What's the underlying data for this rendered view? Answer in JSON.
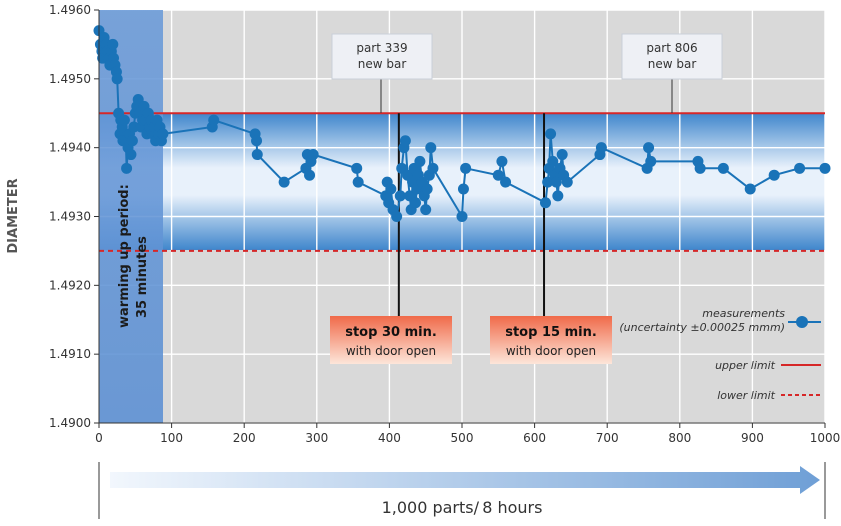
{
  "chart_data": {
    "type": "line",
    "ylabel": "DIAMETER",
    "xlabel": "1,000 parts/ 8 hours",
    "xlim": [
      0,
      1000
    ],
    "ylim": [
      1.49,
      1.496
    ],
    "x_ticks": [
      "0",
      "100",
      "200",
      "300",
      "400",
      "500",
      "600",
      "700",
      "800",
      "900",
      "1000"
    ],
    "y_ticks": [
      "1.4900",
      "1.4910",
      "1.4920",
      "1.4930",
      "1.4940",
      "1.4950",
      "1.4960"
    ],
    "grid": true,
    "upper_limit": 1.4945,
    "lower_limit": 1.4925,
    "warmup": {
      "x_end": 88,
      "label_line1": "warming up period:",
      "label_line2": "35 minutes"
    },
    "annotations": {
      "bar1": {
        "x": 390,
        "line1": "part 339",
        "line2": "new bar"
      },
      "bar2": {
        "x": 790,
        "line1": "part 806",
        "line2": "new bar"
      },
      "stop1": {
        "x": 413,
        "line1": "stop 30 min.",
        "line2": "with door open"
      },
      "stop2": {
        "x": 613,
        "line1": "stop 15 min.",
        "line2": "with door open"
      }
    },
    "legend": {
      "placement": "bottom-right",
      "measurements_line1": "measurements",
      "measurements_line2": "(uncertainty ±0.00025 mmm)",
      "upper": "upper limit",
      "lower": "lower limit"
    },
    "colors": {
      "series": "#1a73b8",
      "upper": "#d62728",
      "lower": "#d62728",
      "warmup": "#5b8fd3",
      "band": "#3f86cc",
      "plot_bg": "#d9d9d9",
      "stop_box": "#f07050"
    },
    "series": [
      {
        "x": [
          0,
          2,
          4,
          5,
          7,
          9,
          10,
          12,
          14,
          15,
          17,
          19,
          20,
          22,
          24,
          25,
          27,
          29,
          30,
          32,
          33,
          35,
          37,
          38,
          40,
          42,
          44,
          46,
          48,
          50,
          52,
          54,
          56,
          58,
          60,
          62,
          64,
          66,
          68,
          70,
          72,
          74,
          76,
          78,
          80,
          82,
          84,
          86,
          88,
          156,
          158,
          215,
          217,
          218,
          255,
          285,
          287,
          290,
          292,
          295,
          355,
          357,
          395,
          397,
          399,
          402,
          405,
          410,
          415,
          417,
          420,
          422,
          425,
          428,
          430,
          432,
          434,
          436,
          438,
          440,
          442,
          445,
          448,
          450,
          452,
          455,
          457,
          460,
          500,
          502,
          505,
          550,
          555,
          560,
          615,
          618,
          620,
          622,
          625,
          628,
          630,
          632,
          635,
          638,
          640,
          645,
          690,
          692,
          755,
          757,
          760,
          825,
          828,
          860,
          897,
          930,
          965,
          1000
        ],
        "y": [
          1.4957,
          1.4955,
          1.4954,
          1.4953,
          1.4956,
          1.4954,
          1.4955,
          1.4954,
          1.4953,
          1.4952,
          1.4954,
          1.4955,
          1.4953,
          1.4952,
          1.4951,
          1.495,
          1.4945,
          1.4942,
          1.4944,
          1.4943,
          1.4941,
          1.4944,
          1.4941,
          1.4937,
          1.494,
          1.4942,
          1.4939,
          1.4941,
          1.4943,
          1.4945,
          1.4946,
          1.4947,
          1.4945,
          1.4943,
          1.4944,
          1.4946,
          1.4944,
          1.4942,
          1.4945,
          1.4943,
          1.4944,
          1.4942,
          1.4943,
          1.4941,
          1.4944,
          1.4942,
          1.4943,
          1.4941,
          1.4942,
          1.4943,
          1.4944,
          1.4942,
          1.4941,
          1.4939,
          1.4935,
          1.4937,
          1.4939,
          1.4936,
          1.4938,
          1.4939,
          1.4937,
          1.4935,
          1.4933,
          1.4935,
          1.4932,
          1.4934,
          1.4931,
          1.493,
          1.4933,
          1.4937,
          1.494,
          1.4941,
          1.4936,
          1.4933,
          1.4931,
          1.4935,
          1.4937,
          1.4932,
          1.4934,
          1.4936,
          1.4938,
          1.4935,
          1.4933,
          1.4931,
          1.4934,
          1.4936,
          1.494,
          1.4937,
          1.493,
          1.4934,
          1.4937,
          1.4936,
          1.4938,
          1.4935,
          1.4932,
          1.4935,
          1.4937,
          1.4942,
          1.4938,
          1.4936,
          1.4935,
          1.4933,
          1.4937,
          1.4939,
          1.4936,
          1.4935,
          1.4939,
          1.494,
          1.4937,
          1.494,
          1.4938,
          1.4938,
          1.4937,
          1.4937,
          1.4934,
          1.4936,
          1.4937,
          1.4937
        ]
      }
    ]
  }
}
